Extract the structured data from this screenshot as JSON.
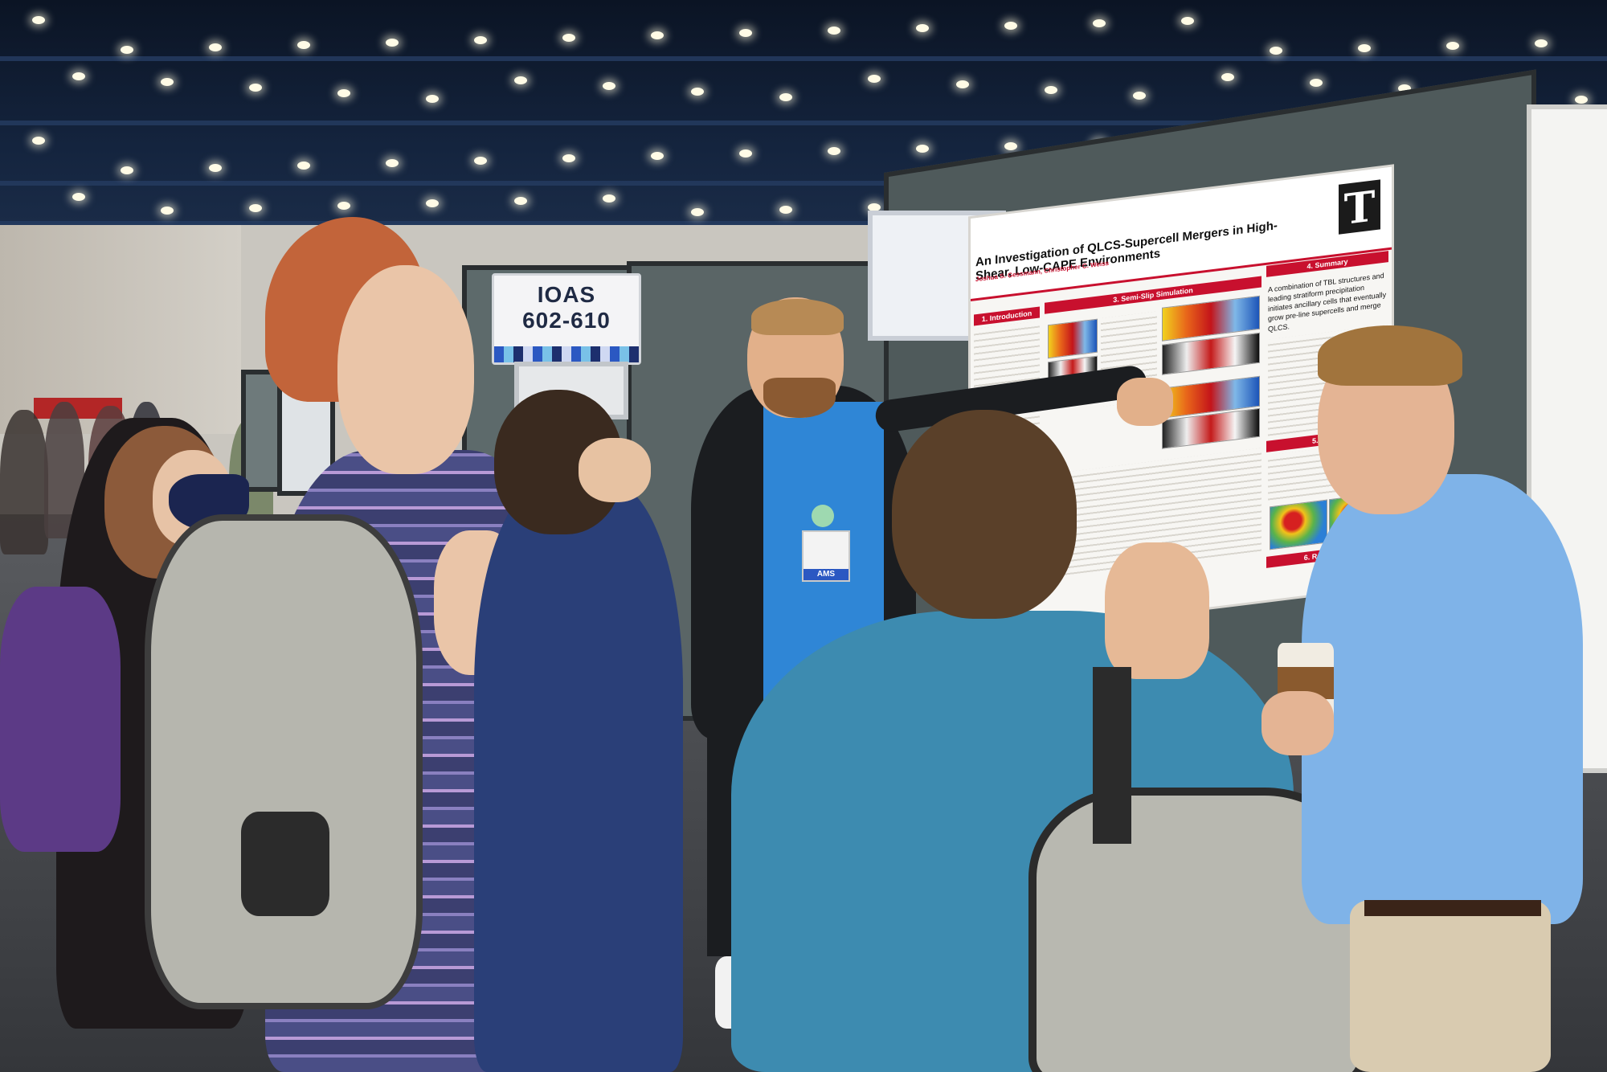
{
  "scene": {
    "description_tags": [
      "conference hall",
      "poster session",
      "crowd"
    ]
  },
  "sign": {
    "line1": "IOAS",
    "line2": "602-610"
  },
  "poster": {
    "title": "An Investigation of QLCS-Supercell Mergers in High-Shear, Low-CAPE Environments",
    "authors": "Joshua S. Gessmann, Christopher C. Weiss",
    "sections": {
      "intro": "1. Introduction",
      "sim": "3. Semi-Slip Simulation",
      "summary": "4. Summary",
      "future": "5. Future",
      "refs": "6. References"
    },
    "summary_text": "A combination of TBL structures and leading stratiform precipitation initiates ancillary cells that eventually grow pre-line supercells and merge QLCS."
  },
  "badges": {
    "ams": "AMS"
  },
  "colors": {
    "ceiling": "#14243e",
    "poster_red": "#c8102e",
    "board": "#4f5a5b",
    "shirt_blue": "#2f86d6",
    "shirt_light_blue": "#7fb3e8",
    "shirt_teal": "#3d8bb0"
  }
}
